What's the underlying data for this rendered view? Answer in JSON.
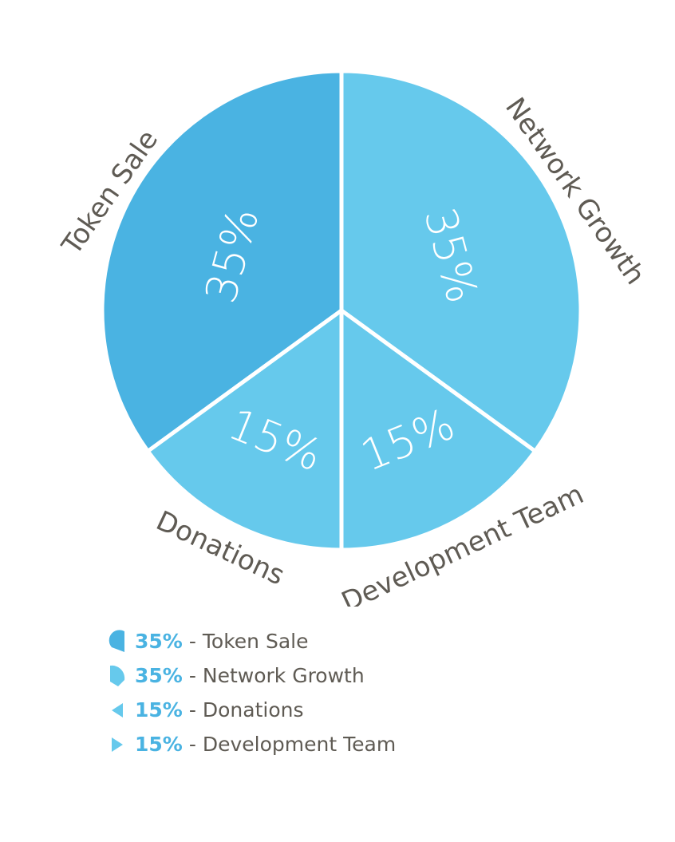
{
  "chart_data": {
    "type": "pie",
    "title": "",
    "slices": [
      {
        "label": "Token Sale",
        "value": 35,
        "percent_label": "35%",
        "color": "#4ab3e2"
      },
      {
        "label": "Network Growth",
        "value": 35,
        "percent_label": "35%",
        "color": "#66c9ec"
      },
      {
        "label": "Development Team",
        "value": 15,
        "percent_label": "15%",
        "color": "#66c9ec"
      },
      {
        "label": "Donations",
        "value": 15,
        "percent_label": "15%",
        "color": "#66c9ec"
      }
    ],
    "legend_placement": "bottom"
  },
  "legend": {
    "separator": "-",
    "pct_color": "#4ab3e2",
    "items": [
      {
        "pct": "35%",
        "name": "Token Sale",
        "icon": "token-sale-wedge-icon"
      },
      {
        "pct": "35%",
        "name": "Network Growth",
        "icon": "network-growth-wedge-icon"
      },
      {
        "pct": "15%",
        "name": "Donations",
        "icon": "donations-wedge-icon"
      },
      {
        "pct": "15%",
        "name": "Development Team",
        "icon": "development-team-wedge-icon"
      }
    ]
  }
}
